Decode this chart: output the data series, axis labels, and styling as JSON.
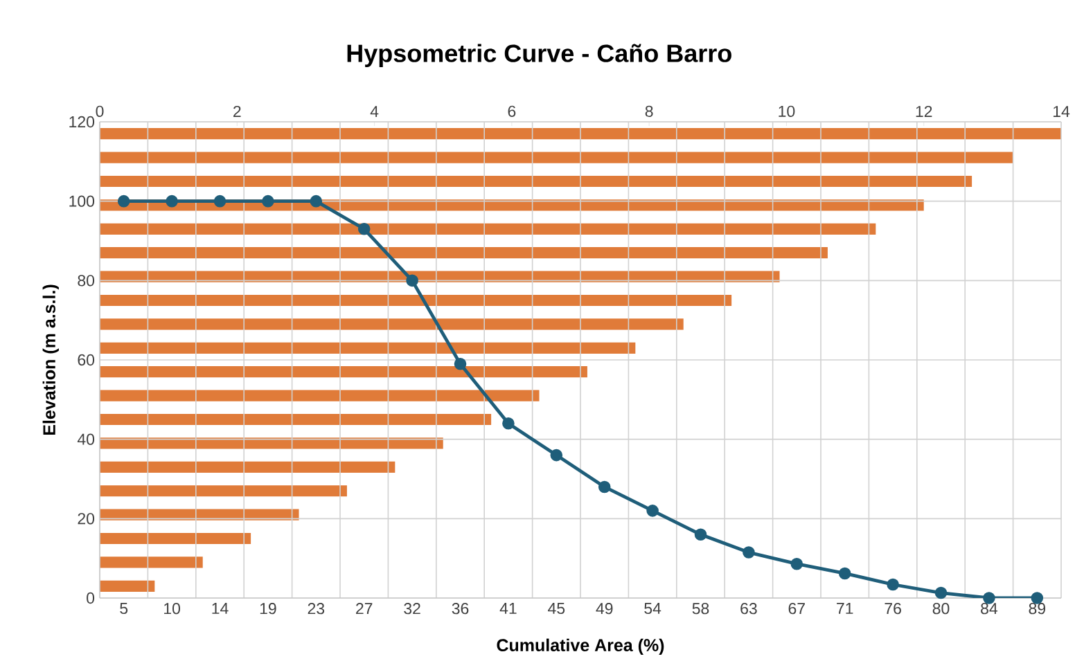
{
  "chart_data": [
    {
      "type": "bar",
      "orientation": "horizontal",
      "categories": [
        null,
        null,
        null,
        null,
        null,
        null,
        null,
        null,
        null,
        null,
        null,
        null,
        null,
        null,
        null,
        null,
        null,
        null,
        null,
        null
      ],
      "color": "#e07b39",
      "values": [
        14.0,
        13.3,
        12.7,
        12.0,
        11.3,
        10.6,
        9.9,
        9.2,
        8.5,
        7.8,
        7.1,
        6.4,
        5.7,
        5.0,
        4.3,
        3.6,
        2.9,
        2.2,
        1.5,
        0.8
      ],
      "xlim": [
        0,
        14
      ],
      "xticks": [
        0,
        2,
        4,
        6,
        8,
        10,
        12,
        14
      ],
      "tick_labels": "x"
    },
    {
      "type": "line",
      "title": "Hypsometric Curve - Caño Barro",
      "xlabel": "Cumulative Area (%)",
      "ylabel": "Elevation (m a.s.l.)",
      "categories": [
        "5",
        "10",
        "14",
        "19",
        "23",
        "27",
        "32",
        "36",
        "41",
        "45",
        "49",
        "54",
        "58",
        "63",
        "67",
        "71",
        "76",
        "80",
        "84",
        "89"
      ],
      "color": "#1f5e7a",
      "values": [
        100,
        100,
        100,
        100,
        100,
        93,
        80,
        59,
        44,
        36,
        28,
        22,
        16,
        11.5,
        8.6,
        6.2,
        3.4,
        1.3,
        0,
        0
      ],
      "ylim": [
        0,
        120
      ],
      "yticks": [
        0,
        20,
        40,
        60,
        80,
        100,
        120
      ],
      "grid": true,
      "marker": "circle",
      "line_style": "solid"
    }
  ]
}
